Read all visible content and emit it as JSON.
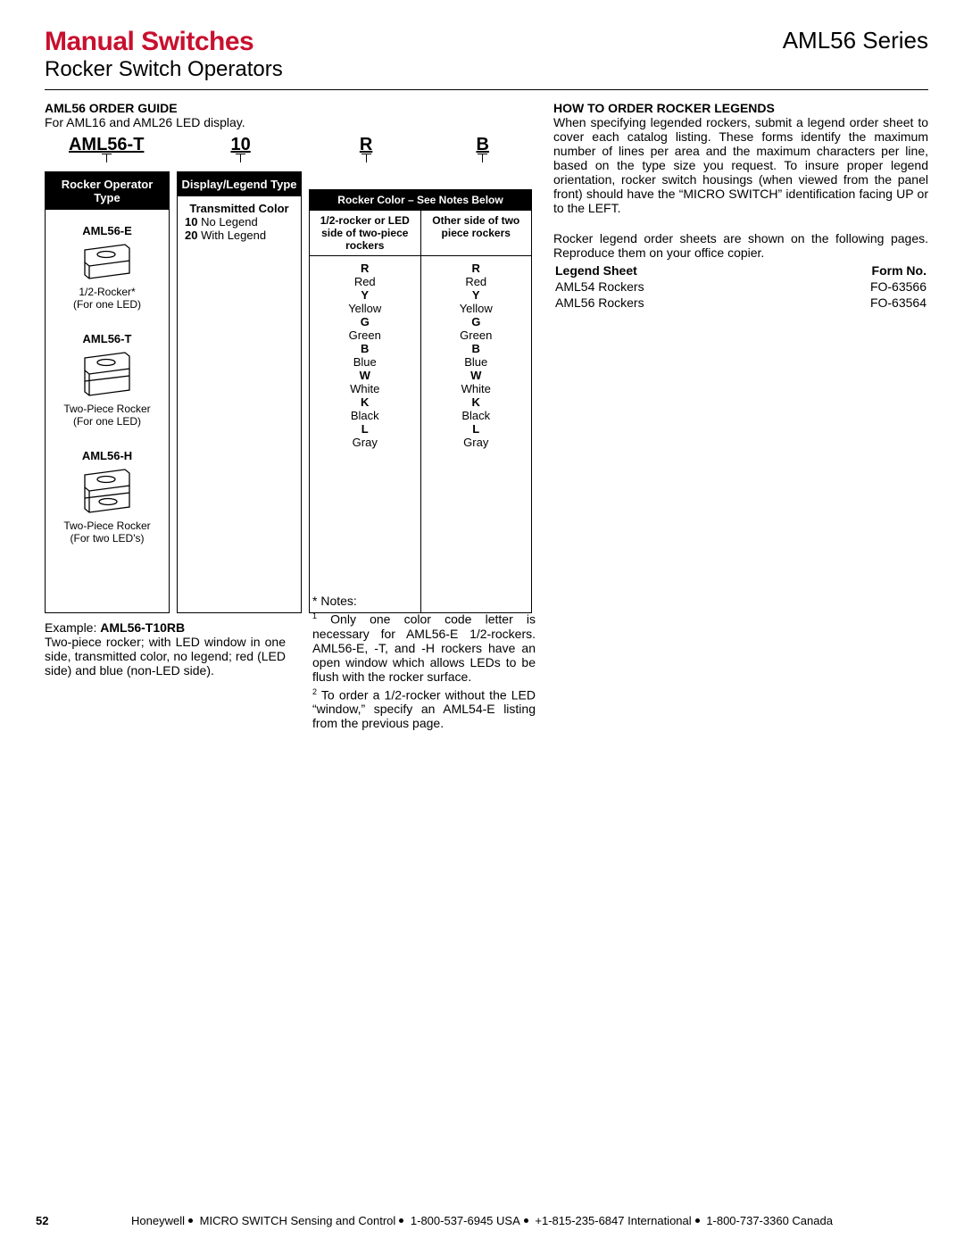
{
  "header": {
    "title_left_a": "Manual Switches",
    "title_left_b": "Rocker Switch Operators",
    "title_right": "AML56 Series"
  },
  "order_guide": {
    "label": "AML56 ORDER GUIDE",
    "intro": "For AML16 and AML26 LED display.",
    "parts": {
      "p1": "AML56-T",
      "p2": "10",
      "p3": "R",
      "p4": "B"
    }
  },
  "rocker_card": {
    "header": "Rocker Operator Type",
    "items": [
      {
        "name": "AML56-E",
        "desc1": "1/2-Rocker*",
        "desc2": "(For one LED)"
      },
      {
        "name": "AML56-T",
        "desc1": "Two-Piece Rocker",
        "desc2": "(For one LED)"
      },
      {
        "name": "AML56-H",
        "desc1": "Two-Piece Rocker",
        "desc2": "(For two LED's)"
      }
    ]
  },
  "display_card": {
    "header": "Display/Legend Type",
    "line1": "Transmitted Color",
    "line2a": "10",
    "line2b": "No Legend",
    "line3a": "20",
    "line3b": "With Legend"
  },
  "color_card": {
    "header": "Rocker Color – See Notes Below",
    "sub1": "1/2-rocker or LED side of two-piece rockers",
    "sub2": "Other side of two piece rockers",
    "colors": [
      {
        "code": "R",
        "name": "Red"
      },
      {
        "code": "Y",
        "name": "Yellow"
      },
      {
        "code": "G",
        "name": "Green"
      },
      {
        "code": "B",
        "name": "Blue"
      },
      {
        "code": "W",
        "name": "White"
      },
      {
        "code": "K",
        "name": "Black"
      },
      {
        "code": "L",
        "name": "Gray"
      }
    ]
  },
  "example": {
    "label": "Example: ",
    "code": "AML56-T10RB",
    "text": "Two-piece rocker; with LED window in one side, transmitted color, no legend; red (LED side) and blue (non-LED side)."
  },
  "notes": {
    "star": "* Notes:",
    "n1": "Only one color code letter is necessary for AML56-E 1/2-rockers. AML56-E, -T, and -H rockers have an open window which allows LEDs to be flush with the rocker surface.",
    "n2": "To order a 1/2-rocker without the LED “window,” specify an AML54-E listing from the previous page."
  },
  "right": {
    "heading": "HOW TO ORDER ROCKER LEGENDS",
    "para1": "When specifying legended rockers, submit a legend order sheet to cover each catalog listing. These forms identify the maximum number of lines per area and the maximum characters per line, based on the type size you request. To insure proper legend orientation, rocker switch housings (when viewed from the panel front) should have the “MICRO SWITCH” identification facing UP or to the LEFT.",
    "para2": "Rocker legend order sheets are shown on the following pages. Reproduce them on your office copier.",
    "table": {
      "h1": "Legend Sheet",
      "h2": "Form No.",
      "r1a": "AML54 Rockers",
      "r1b": "FO-63566",
      "r2a": "AML56 Rockers",
      "r2b": "FO-63564"
    }
  },
  "footer": {
    "page": "52",
    "t1": "Honeywell",
    "t2": "MICRO SWITCH Sensing and Control",
    "t3": "1-800-537-6945 USA",
    "t4": "+1-815-235-6847 International",
    "t5": "1-800-737-3360 Canada"
  }
}
